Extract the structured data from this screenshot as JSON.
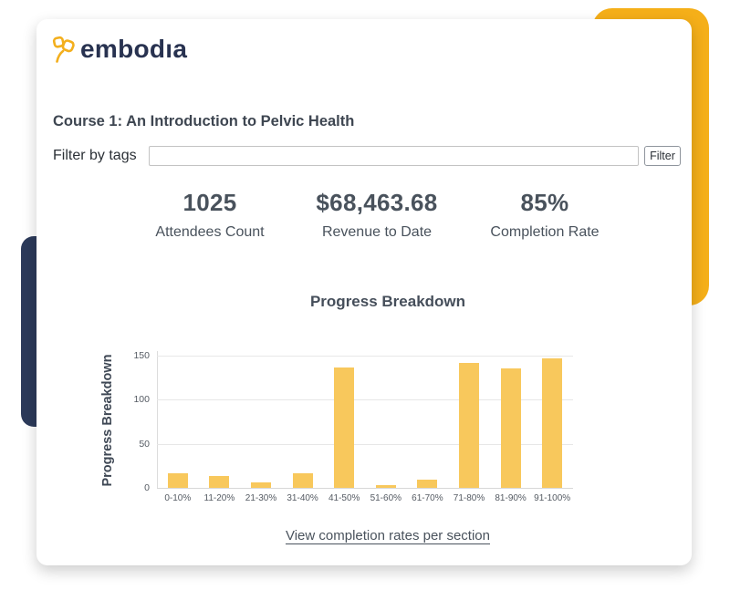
{
  "colors": {
    "brand_navy": "#283250",
    "decor_navy": "#2C3A5A",
    "accent_yellow": "#F5AF19",
    "bar_yellow": "#F8C85C"
  },
  "logo": {
    "text": "embodıa",
    "icon": "embodia-flower-icon"
  },
  "course": {
    "title": "Course 1: An Introduction to Pelvic Health"
  },
  "filter": {
    "label": "Filter by tags",
    "input_value": "",
    "input_placeholder": "",
    "button_label": "Filter"
  },
  "stats": [
    {
      "value": "1025",
      "label": "Attendees Count"
    },
    {
      "value": "$68,463.68",
      "label": "Revenue to Date"
    },
    {
      "value": "85%",
      "label": "Completion Rate"
    }
  ],
  "chart_data": {
    "type": "bar",
    "title": "Progress Breakdown",
    "ylabel": "Progress Breakdown",
    "xlabel": "",
    "categories": [
      "0-10%",
      "11-20%",
      "21-30%",
      "31-40%",
      "41-50%",
      "51-60%",
      "61-70%",
      "71-80%",
      "81-90%",
      "91-100%"
    ],
    "values": [
      17,
      13,
      6,
      17,
      137,
      3,
      9,
      142,
      136,
      147
    ],
    "ylim": [
      0,
      150
    ],
    "yticks": [
      0,
      50,
      100,
      150
    ],
    "bar_color": "#F8C85C",
    "grid": true,
    "legend": false
  },
  "footer": {
    "link_label": "View completion rates per section"
  }
}
